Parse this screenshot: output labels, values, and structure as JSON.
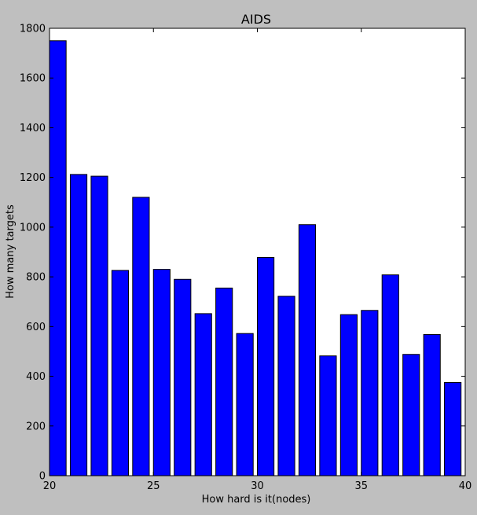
{
  "chart_data": {
    "type": "bar",
    "title": "AIDS",
    "xlabel": "How hard is it(nodes)",
    "ylabel": "How many targets",
    "xlim": [
      20,
      40
    ],
    "ylim": [
      0,
      1800
    ],
    "x_ticks": [
      20,
      25,
      30,
      35,
      40
    ],
    "y_ticks": [
      0,
      200,
      400,
      600,
      800,
      1000,
      1200,
      1400,
      1600,
      1800
    ],
    "bar_width": 0.8,
    "bar_color": "#0000ff",
    "grid": false,
    "x": [
      20,
      21,
      22,
      23,
      24,
      25,
      26,
      27,
      28,
      29,
      30,
      31,
      32,
      33,
      34,
      35,
      36,
      37,
      38,
      39
    ],
    "values": [
      1750,
      1212,
      1205,
      826,
      1120,
      830,
      790,
      652,
      755,
      572,
      878,
      722,
      1010,
      482,
      648,
      665,
      808,
      488,
      568,
      375
    ]
  }
}
